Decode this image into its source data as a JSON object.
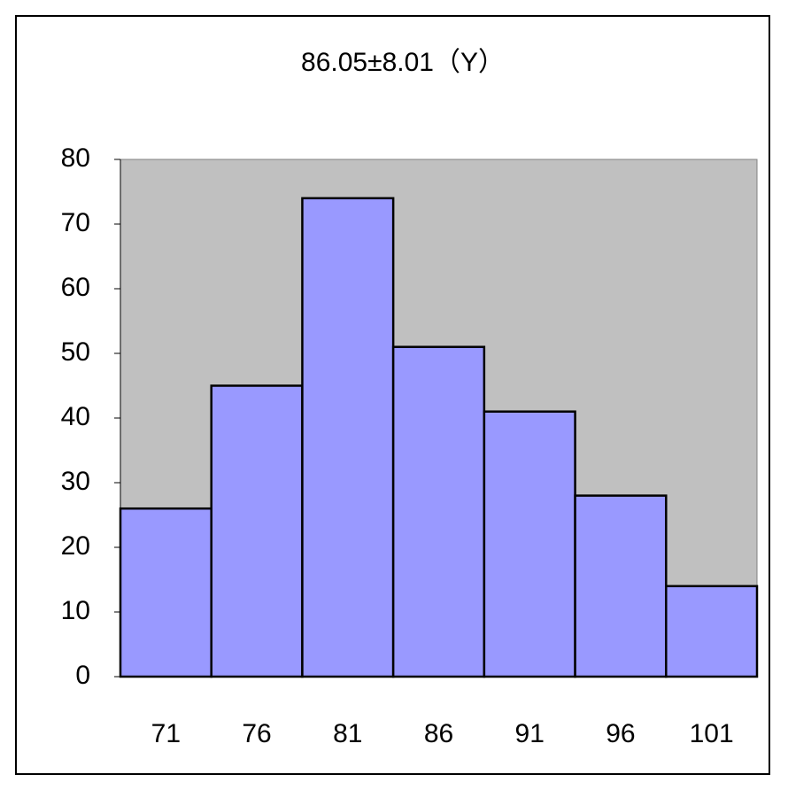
{
  "chart_data": {
    "type": "bar",
    "title": "86.05±8.01（Y）",
    "categories": [
      "71",
      "76",
      "81",
      "86",
      "91",
      "96",
      "101"
    ],
    "values": [
      26,
      45,
      74,
      51,
      41,
      28,
      14
    ],
    "color": "#9999ff",
    "plot_background": "#c0c0c0",
    "ylim": [
      0,
      80
    ],
    "yticks": [
      0,
      10,
      20,
      30,
      40,
      50,
      60,
      70,
      80
    ],
    "grid": false
  }
}
